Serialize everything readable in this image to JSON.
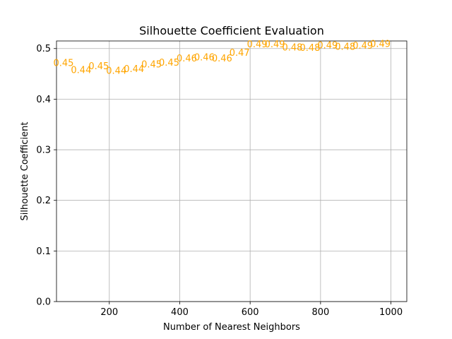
{
  "chart_data": {
    "type": "scatter",
    "title": "Silhouette Coefficient Evaluation",
    "xlabel": "Number of Nearest Neighbors",
    "ylabel": "Silhouette Coefficient",
    "xlim": [
      50,
      1045
    ],
    "ylim": [
      0.0,
      0.515
    ],
    "xticks": [
      200,
      400,
      600,
      800,
      1000
    ],
    "yticks": [
      0.0,
      0.1,
      0.2,
      0.3,
      0.4,
      0.5
    ],
    "xtick_labels": [
      "200",
      "400",
      "600",
      "800",
      "1000"
    ],
    "ytick_labels": [
      "0.0",
      "0.1",
      "0.2",
      "0.3",
      "0.4",
      "0.5"
    ],
    "grid": true,
    "marker": "text labels",
    "label_color": "#FFA500",
    "points": [
      {
        "x": 70,
        "y": 0.471,
        "label": "0.45"
      },
      {
        "x": 120,
        "y": 0.457,
        "label": "0.44"
      },
      {
        "x": 170,
        "y": 0.465,
        "label": "0.45"
      },
      {
        "x": 220,
        "y": 0.456,
        "label": "0.44"
      },
      {
        "x": 270,
        "y": 0.459,
        "label": "0.44"
      },
      {
        "x": 320,
        "y": 0.468,
        "label": "0.45"
      },
      {
        "x": 370,
        "y": 0.472,
        "label": "0.45"
      },
      {
        "x": 420,
        "y": 0.48,
        "label": "0.46"
      },
      {
        "x": 470,
        "y": 0.482,
        "label": "0.46"
      },
      {
        "x": 520,
        "y": 0.48,
        "label": "0.46"
      },
      {
        "x": 570,
        "y": 0.491,
        "label": "0.47"
      },
      {
        "x": 620,
        "y": 0.508,
        "label": "0.49"
      },
      {
        "x": 670,
        "y": 0.508,
        "label": "0.49"
      },
      {
        "x": 720,
        "y": 0.502,
        "label": "0.48"
      },
      {
        "x": 770,
        "y": 0.501,
        "label": "0.48"
      },
      {
        "x": 820,
        "y": 0.506,
        "label": "0.49"
      },
      {
        "x": 870,
        "y": 0.503,
        "label": "0.48"
      },
      {
        "x": 920,
        "y": 0.505,
        "label": "0.49"
      },
      {
        "x": 970,
        "y": 0.509,
        "label": "0.49"
      }
    ]
  }
}
